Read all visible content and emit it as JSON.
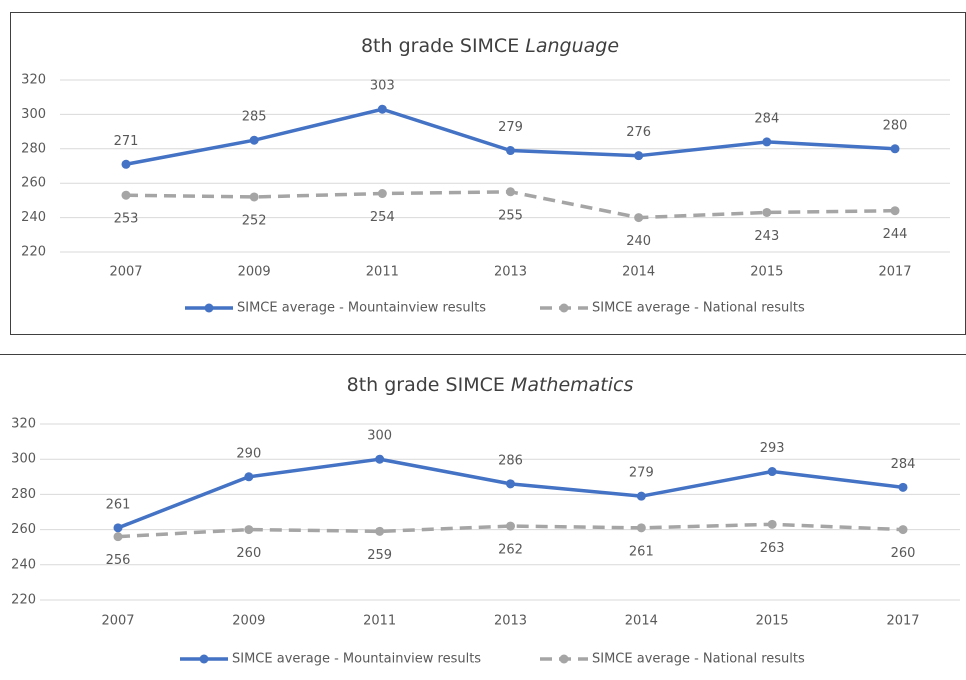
{
  "chart_data": [
    {
      "type": "line",
      "title": "8th grade SIMCE",
      "title_emphasis": "Language",
      "categories": [
        "2007",
        "2009",
        "2011",
        "2013",
        "2014",
        "2015",
        "2017"
      ],
      "series": [
        {
          "name": "SIMCE average - Mountainview results",
          "color": "#4472c4",
          "dashed": false,
          "values": [
            271,
            285,
            303,
            279,
            276,
            284,
            280
          ]
        },
        {
          "name": "SIMCE average - National results",
          "color": "#a5a5a5",
          "dashed": true,
          "values": [
            253,
            252,
            254,
            255,
            240,
            243,
            244
          ]
        }
      ],
      "ylim": [
        220,
        320
      ],
      "yticks": [
        220,
        240,
        260,
        280,
        300,
        320
      ],
      "grid": true,
      "legend": "bottom"
    },
    {
      "type": "line",
      "title": "8th grade SIMCE",
      "title_emphasis": "Mathematics",
      "categories": [
        "2007",
        "2009",
        "2011",
        "2013",
        "2014",
        "2015",
        "2017"
      ],
      "series": [
        {
          "name": "SIMCE average - Mountainview results",
          "color": "#4472c4",
          "dashed": false,
          "values": [
            261,
            290,
            300,
            286,
            279,
            293,
            284
          ]
        },
        {
          "name": "SIMCE average - National results",
          "color": "#a5a5a5",
          "dashed": true,
          "values": [
            256,
            260,
            259,
            262,
            261,
            263,
            260
          ]
        }
      ],
      "ylim": [
        220,
        320
      ],
      "yticks": [
        220,
        240,
        260,
        280,
        300,
        320
      ],
      "grid": true,
      "legend": "bottom"
    }
  ]
}
